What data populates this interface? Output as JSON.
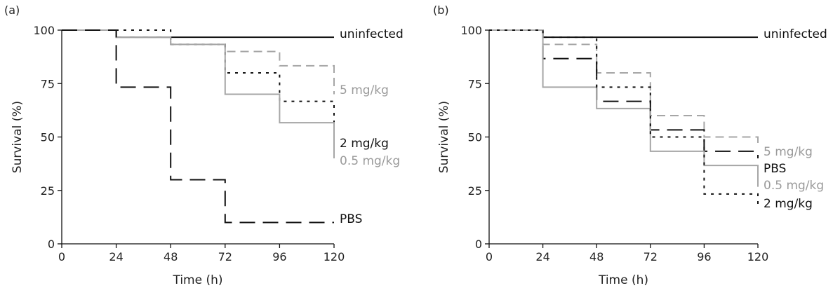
{
  "chart_data": [
    {
      "type": "line",
      "step": true,
      "panel_label": "(a)",
      "xlabel": "Time (h)",
      "ylabel": "Survival (%)",
      "xlim": [
        0,
        120
      ],
      "ylim": [
        0,
        100
      ],
      "xticks": [
        "0",
        "24",
        "48",
        "72",
        "96",
        "120"
      ],
      "yticks": [
        "0",
        "25",
        "50",
        "75",
        "100"
      ],
      "grid": false,
      "legend": "inline labels at right end of curves",
      "series": [
        {
          "name": "uninfected",
          "style": "solid",
          "color": "#111111",
          "x": [
            0,
            24,
            120
          ],
          "y": [
            100,
            96.7,
            96.7
          ]
        },
        {
          "name": "5 mg/kg",
          "style": "dashed",
          "color": "#a6a6a6",
          "x": [
            0,
            24,
            48,
            72,
            96,
            120
          ],
          "y": [
            100,
            96.7,
            93.3,
            90,
            83.3,
            70
          ]
        },
        {
          "name": "2 mg/kg",
          "style": "dotted",
          "color": "#111111",
          "x": [
            0,
            48,
            72,
            96,
            120
          ],
          "y": [
            100,
            93.3,
            80,
            66.7,
            43.3
          ]
        },
        {
          "name": "0.5 mg/kg",
          "style": "solid",
          "color": "#a6a6a6",
          "x": [
            0,
            24,
            48,
            72,
            96,
            120
          ],
          "y": [
            100,
            96.7,
            93.3,
            70,
            56.7,
            40
          ]
        },
        {
          "name": "PBS",
          "style": "longdash",
          "color": "#111111",
          "x": [
            0,
            24,
            48,
            72,
            120
          ],
          "y": [
            100,
            73.3,
            30,
            10,
            10
          ]
        }
      ]
    },
    {
      "type": "line",
      "step": true,
      "panel_label": "(b)",
      "xlabel": "Time (h)",
      "ylabel": "Survival (%)",
      "xlim": [
        0,
        120
      ],
      "ylim": [
        0,
        100
      ],
      "xticks": [
        "0",
        "24",
        "48",
        "72",
        "96",
        "120"
      ],
      "yticks": [
        "0",
        "25",
        "50",
        "75",
        "100"
      ],
      "grid": false,
      "legend": "inline labels at right end of curves",
      "series": [
        {
          "name": "uninfected",
          "style": "solid",
          "color": "#111111",
          "x": [
            0,
            24,
            120
          ],
          "y": [
            100,
            96.7,
            96.7
          ]
        },
        {
          "name": "5 mg/kg",
          "style": "dashed",
          "color": "#a6a6a6",
          "x": [
            0,
            24,
            48,
            72,
            96,
            120
          ],
          "y": [
            100,
            93.3,
            80,
            60,
            50,
            46.7
          ]
        },
        {
          "name": "PBS",
          "style": "longdash",
          "color": "#111111",
          "x": [
            0,
            24,
            48,
            72,
            96,
            120
          ],
          "y": [
            100,
            86.7,
            66.7,
            53.3,
            43.3,
            40
          ]
        },
        {
          "name": "0.5 mg/kg",
          "style": "solid",
          "color": "#a6a6a6",
          "x": [
            0,
            24,
            48,
            72,
            96,
            120
          ],
          "y": [
            100,
            73.3,
            63.3,
            43.3,
            36.7,
            26.7
          ]
        },
        {
          "name": "2 mg/kg",
          "style": "dotted",
          "color": "#111111",
          "x": [
            0,
            24,
            48,
            72,
            96,
            120
          ],
          "y": [
            100,
            96.7,
            73.3,
            50,
            23.3,
            16.7
          ]
        }
      ]
    }
  ]
}
